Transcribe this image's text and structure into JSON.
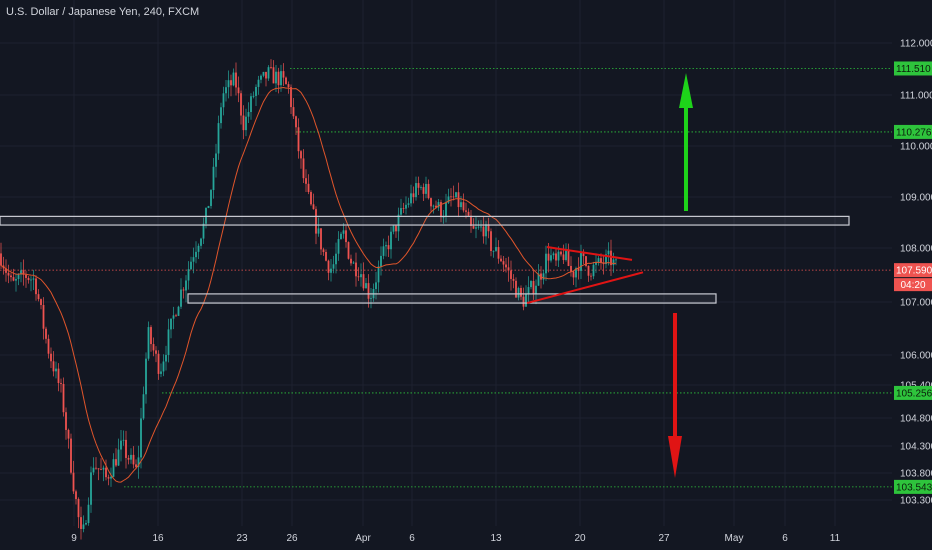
{
  "header": {
    "symbol_label": "U.S. Dollar / Japanese Yen, 240, FXCM"
  },
  "colors": {
    "background": "#131722",
    "grid": "#1e2230",
    "axis_text": "#d1d4dc",
    "up": "#26a69a",
    "down": "#ef5350",
    "ma": "#e0552b",
    "level_green": "#2ec43c",
    "level_red": "#ef5350",
    "zone_border": "#c9cbd3",
    "arrow_up": "#1ed31a",
    "arrow_down": "#e01414",
    "triangle": "#e01414"
  },
  "chart_data": {
    "type": "candlestick",
    "yticks": [
      "112.000",
      "111.000",
      "110.000",
      "109.000",
      "108.000",
      "107.000",
      "106.000",
      "105.400",
      "104.800",
      "104.300",
      "103.800",
      "103.300"
    ],
    "xticks": [
      "9",
      "16",
      "23",
      "26",
      "Apr",
      "6",
      "13",
      "20",
      "27",
      "May",
      "6",
      "11"
    ],
    "price_levels": [
      {
        "value": "111.510",
        "color": "green"
      },
      {
        "value": "110.276",
        "color": "green"
      },
      {
        "value": "105.256",
        "color": "green"
      },
      {
        "value": "103.543",
        "color": "green"
      },
      {
        "value": "107.590",
        "color": "red"
      }
    ],
    "current_price": "107.590",
    "countdown": "04:20",
    "zones": [
      {
        "name": "resistance",
        "low": 108.45,
        "high": 108.62
      },
      {
        "name": "support",
        "low": 106.98,
        "high": 107.15
      }
    ],
    "ma_label": "",
    "anchors": [
      [
        0,
        107.9
      ],
      [
        12,
        107.3
      ],
      [
        25,
        107.5
      ],
      [
        35,
        107.4
      ],
      [
        47,
        106.2
      ],
      [
        62,
        105.2
      ],
      [
        75,
        103.4
      ],
      [
        82,
        102.5
      ],
      [
        93,
        104.0
      ],
      [
        106,
        103.7
      ],
      [
        122,
        104.3
      ],
      [
        137,
        103.8
      ],
      [
        148,
        106.4
      ],
      [
        160,
        105.7
      ],
      [
        176,
        106.9
      ],
      [
        193,
        107.9
      ],
      [
        205,
        108.5
      ],
      [
        214,
        109.5
      ],
      [
        222,
        111.0
      ],
      [
        235,
        111.3
      ],
      [
        244,
        110.4
      ],
      [
        255,
        111.1
      ],
      [
        268,
        111.4
      ],
      [
        281,
        111.3
      ],
      [
        289,
        111.1
      ],
      [
        297,
        110.1
      ],
      [
        305,
        109.2
      ],
      [
        315,
        108.5
      ],
      [
        325,
        107.8
      ],
      [
        332,
        107.6
      ],
      [
        343,
        108.3
      ],
      [
        352,
        107.7
      ],
      [
        360,
        107.6
      ],
      [
        370,
        107.1
      ],
      [
        382,
        107.8
      ],
      [
        393,
        108.3
      ],
      [
        402,
        108.7
      ],
      [
        414,
        109.1
      ],
      [
        424,
        109.2
      ],
      [
        432,
        108.9
      ],
      [
        443,
        108.7
      ],
      [
        452,
        109.0
      ],
      [
        462,
        108.8
      ],
      [
        472,
        108.3
      ],
      [
        484,
        108.4
      ],
      [
        492,
        108.0
      ],
      [
        502,
        107.8
      ],
      [
        512,
        107.4
      ],
      [
        522,
        107.0
      ],
      [
        530,
        107.2
      ],
      [
        540,
        107.5
      ],
      [
        548,
        107.9
      ],
      [
        556,
        107.7
      ],
      [
        564,
        107.9
      ],
      [
        572,
        107.5
      ],
      [
        580,
        107.8
      ],
      [
        590,
        107.6
      ],
      [
        600,
        107.7
      ],
      [
        610,
        107.8
      ],
      [
        618,
        107.6
      ]
    ]
  }
}
